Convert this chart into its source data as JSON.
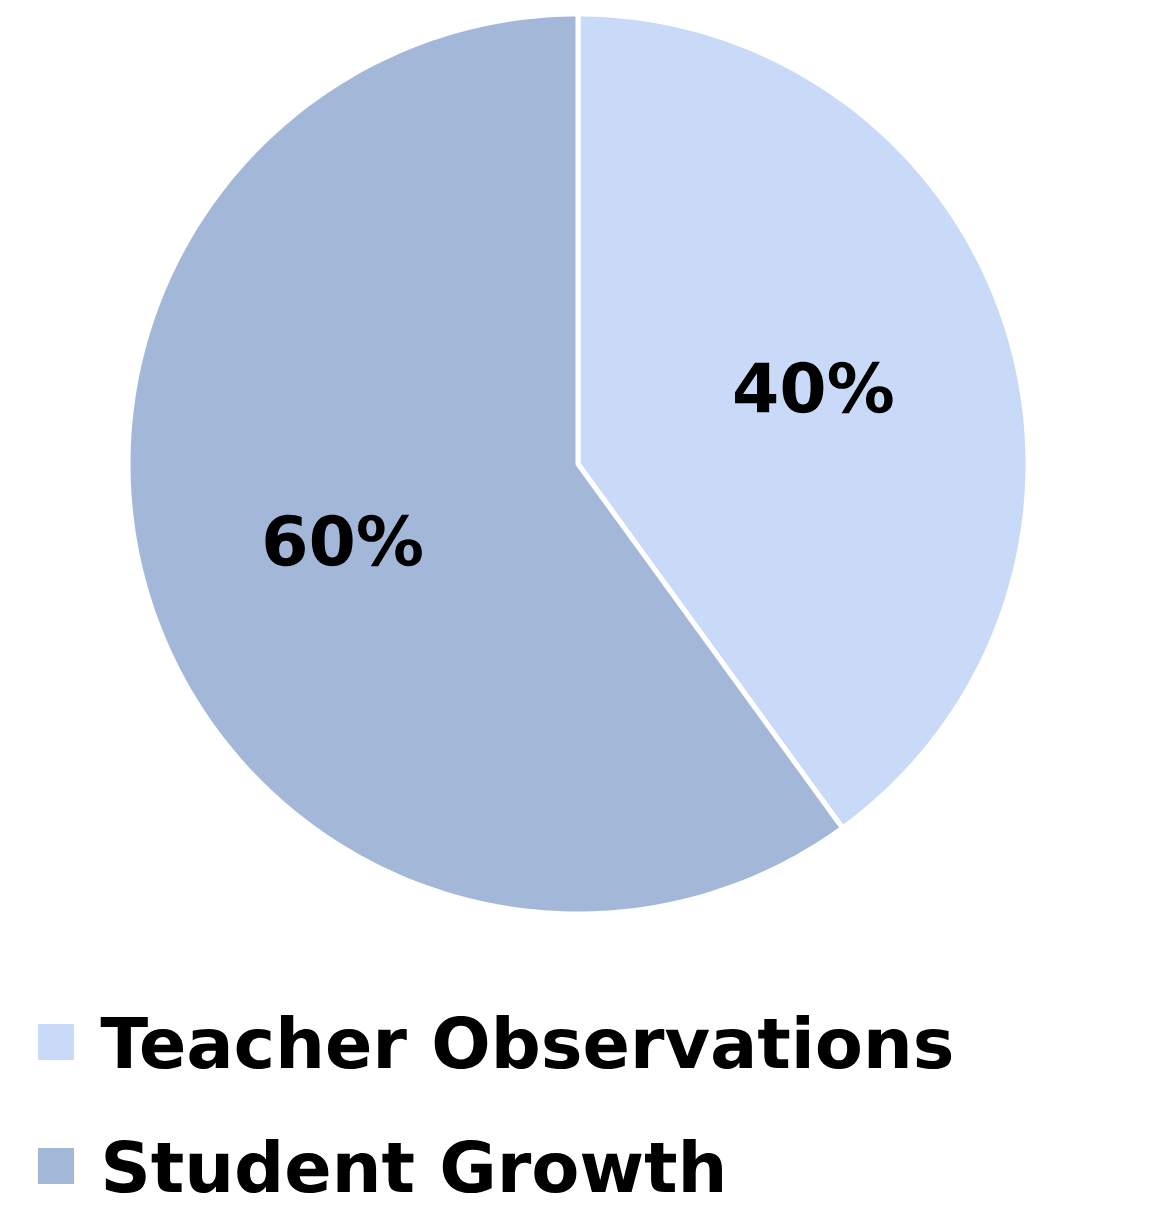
{
  "chart_data": {
    "type": "pie",
    "categories": [
      "Teacher Observations",
      "Student Growth"
    ],
    "values": [
      40,
      60
    ],
    "colors": [
      "#c9daf8",
      "#a3b8d9"
    ],
    "value_labels": [
      "40%",
      "60%"
    ],
    "legend": "bottom"
  }
}
